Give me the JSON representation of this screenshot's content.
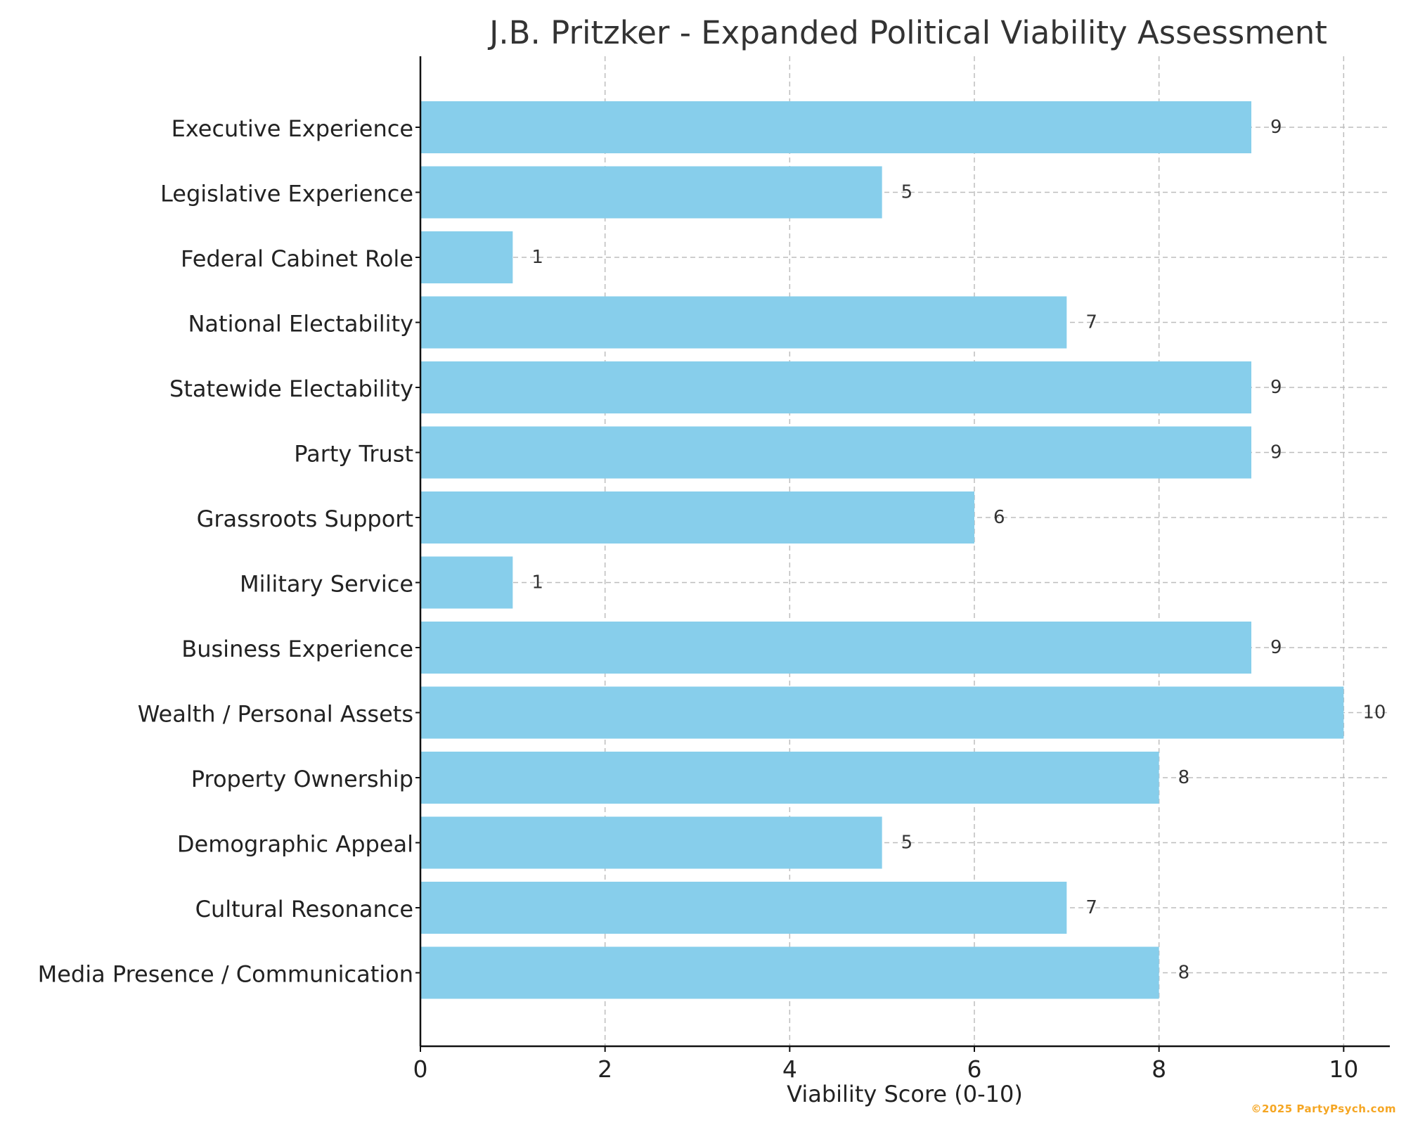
{
  "chart_data": {
    "type": "bar",
    "orientation": "horizontal",
    "title": "J.B. Pritzker - Expanded Political Viability Assessment",
    "xlabel": "Viability Score (0-10)",
    "ylabel": "",
    "xlim": [
      0,
      10.5
    ],
    "xticks": [
      0,
      2,
      4,
      6,
      8,
      10
    ],
    "grid": true,
    "bar_color": "#87ceeb",
    "categories": [
      "Executive Experience",
      "Legislative Experience",
      "Federal Cabinet Role",
      "National Electability",
      "Statewide Electability",
      "Party Trust",
      "Grassroots Support",
      "Military Service",
      "Business Experience",
      "Wealth / Personal Assets",
      "Property Ownership",
      "Demographic Appeal",
      "Cultural Resonance",
      "Media Presence / Communication"
    ],
    "values": [
      9,
      5,
      1,
      7,
      9,
      9,
      6,
      1,
      9,
      10,
      8,
      5,
      7,
      8
    ]
  },
  "watermark": {
    "text": "©2025 PartyPsych.com",
    "color": "#f5a623"
  }
}
